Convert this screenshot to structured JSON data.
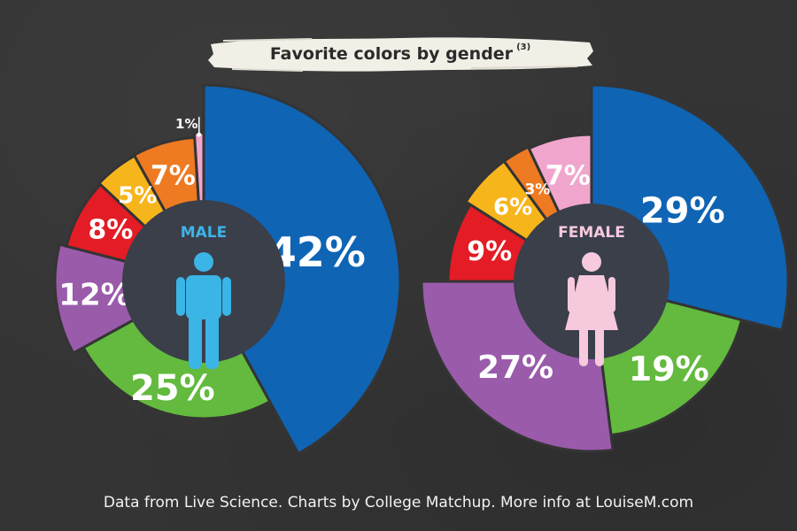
{
  "header": {
    "title": "Favorite colors by gender",
    "title_ref": "(3)"
  },
  "footer": {
    "source": "Data from Live Science. Charts by College Matchup. More info at LouiseM.com"
  },
  "colors": {
    "background": "#343434",
    "center": "#3a3f4a",
    "blue": "#0f64b4",
    "green": "#63ba3e",
    "purple": "#9a5bab",
    "red": "#e31c25",
    "yellow": "#f7b51c",
    "orange": "#ee7a22",
    "pink": "#f0a6cc",
    "male_icon": "#3bb4e6",
    "female_icon": "#f6c9dd"
  },
  "chart_data": [
    {
      "type": "pie",
      "center_label": "MALE",
      "icon": "male-figure-icon",
      "slices": [
        {
          "color_name": "blue",
          "value": 42,
          "label": "42%"
        },
        {
          "color_name": "green",
          "value": 25,
          "label": "25%"
        },
        {
          "color_name": "purple",
          "value": 12,
          "label": "12%"
        },
        {
          "color_name": "red",
          "value": 8,
          "label": "8%"
        },
        {
          "color_name": "yellow",
          "value": 5,
          "label": "5%"
        },
        {
          "color_name": "orange",
          "value": 7,
          "label": "7%"
        },
        {
          "color_name": "pink",
          "value": 1,
          "label": "1%"
        }
      ]
    },
    {
      "type": "pie",
      "center_label": "FEMALE",
      "icon": "female-figure-icon",
      "slices": [
        {
          "color_name": "blue",
          "value": 29,
          "label": "29%"
        },
        {
          "color_name": "green",
          "value": 19,
          "label": "19%"
        },
        {
          "color_name": "purple",
          "value": 27,
          "label": "27%"
        },
        {
          "color_name": "red",
          "value": 9,
          "label": "9%"
        },
        {
          "color_name": "yellow",
          "value": 6,
          "label": "6%"
        },
        {
          "color_name": "orange",
          "value": 3,
          "label": "3%"
        },
        {
          "color_name": "pink",
          "value": 7,
          "label": "7%"
        }
      ]
    }
  ]
}
